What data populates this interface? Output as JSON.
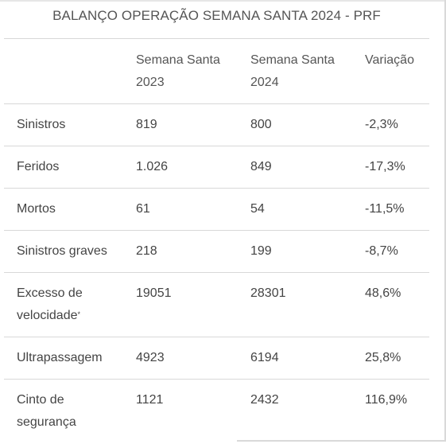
{
  "title": "BALANÇO OPERAÇÃO SEMANA SANTA 2024 - PRF",
  "table": {
    "headers": [
      "",
      "Semana Santa\n2023",
      "Semana Santa\n2024",
      "Variação"
    ],
    "header_lines": [
      [
        "",
        ""
      ],
      [
        "Semana Santa",
        "2023"
      ],
      [
        "Semana Santa",
        "2024"
      ],
      [
        "Variação",
        ""
      ]
    ],
    "rows": [
      {
        "label": [
          "Sinistros"
        ],
        "v2023": "819",
        "v2024": "800",
        "variation": "-2,3%"
      },
      {
        "label": [
          "Feridos"
        ],
        "v2023": "1.026",
        "v2024": "849",
        "variation": "-17,3%"
      },
      {
        "label": [
          "Mortos"
        ],
        "v2023": "61",
        "v2024": "54",
        "variation": "-11,5%"
      },
      {
        "label": [
          "Sinistros graves"
        ],
        "v2023": "218",
        "v2024": "199",
        "variation": "-8,7%"
      },
      {
        "label": [
          "Excesso de",
          "velocidade"
        ],
        "note": "*",
        "v2023": "19051",
        "v2024": "28301",
        "variation": "48,6%"
      },
      {
        "label": [
          "Ultrapassagem"
        ],
        "v2023": "4923",
        "v2024": "6194",
        "variation": "25,8%"
      },
      {
        "label": [
          "Cinto de",
          "segurança"
        ],
        "v2023": "1121",
        "v2024": "2432",
        "variation": "116,9%"
      }
    ]
  }
}
